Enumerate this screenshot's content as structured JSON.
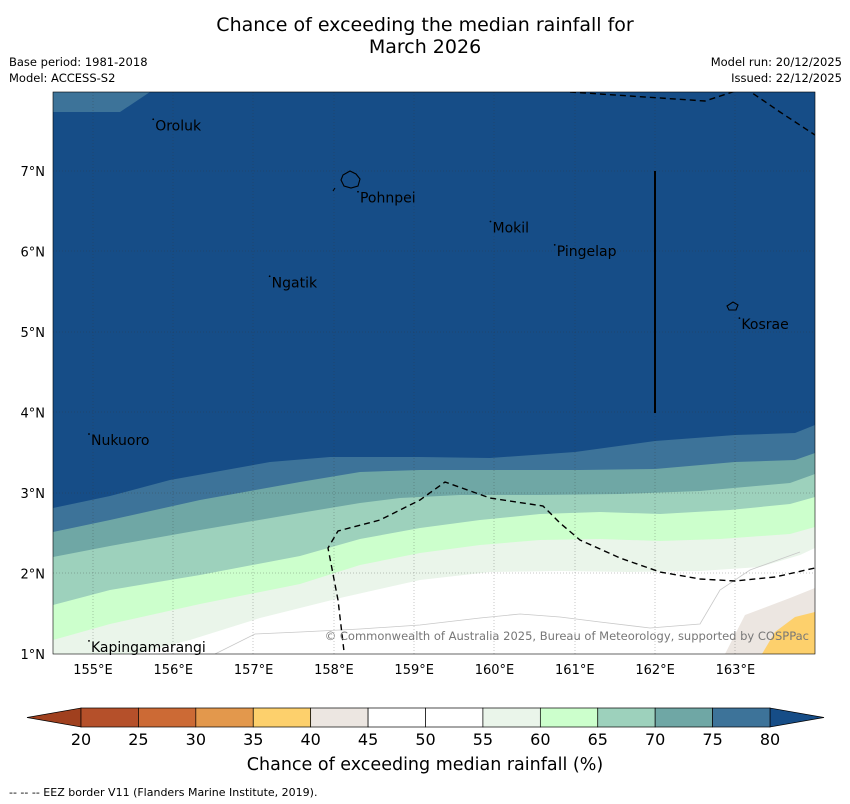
{
  "title": {
    "line1": "Chance of exceeding the median rainfall for",
    "line2": "March 2026"
  },
  "meta": {
    "base_period": "Base period: 1981-2018",
    "model": "Model: ACCESS-S2",
    "model_run": "Model run: 20/12/2025",
    "issued": "Issued: 22/12/2025"
  },
  "map": {
    "lon_range": [
      154.5,
      164.0
    ],
    "lat_range": [
      1.0,
      8.0
    ],
    "lon_ticks": [
      "155°E",
      "156°E",
      "157°E",
      "158°E",
      "159°E",
      "160°E",
      "161°E",
      "162°E",
      "163°E"
    ],
    "lat_ticks": [
      "1°N",
      "2°N",
      "3°N",
      "4°N",
      "5°N",
      "6°N",
      "7°N"
    ],
    "places": [
      {
        "name": "Oroluk",
        "lon": 155.75,
        "lat": 7.63
      },
      {
        "name": "Pohnpei",
        "lon": 158.3,
        "lat": 6.73
      },
      {
        "name": "Mokil",
        "lon": 159.95,
        "lat": 6.36
      },
      {
        "name": "Pingelap",
        "lon": 160.75,
        "lat": 6.07
      },
      {
        "name": "Ngatik",
        "lon": 157.2,
        "lat": 5.68
      },
      {
        "name": "Kosrae",
        "lon": 163.05,
        "lat": 5.16
      },
      {
        "name": "Nukuoro",
        "lon": 154.95,
        "lat": 3.72
      },
      {
        "name": "Kapingamarangi",
        "lon": 154.95,
        "lat": 1.15
      }
    ],
    "copyright": "© Commonwealth of Australia 2025, Bureau of Meteorology, supported by COSPPac"
  },
  "colorbar": {
    "ticks": [
      "20",
      "25",
      "30",
      "35",
      "40",
      "45",
      "50",
      "55",
      "60",
      "65",
      "70",
      "75",
      "80"
    ],
    "colors": [
      "#b5502a",
      "#cc6a35",
      "#e3984c",
      "#fdd06c",
      "#ece6e1",
      "#ffffff",
      "#ffffff",
      "#eaf5ea",
      "#ccffcc",
      "#9dd1bc",
      "#6fa7a5",
      "#3d7399"
    ],
    "under_color": "#a0401e",
    "over_color": "#164d87",
    "label": "Chance of exceeding median rainfall (%)"
  },
  "eez_note": "--  --  -- EEZ border V11 (Flanders Marine Institute, 2019)."
}
